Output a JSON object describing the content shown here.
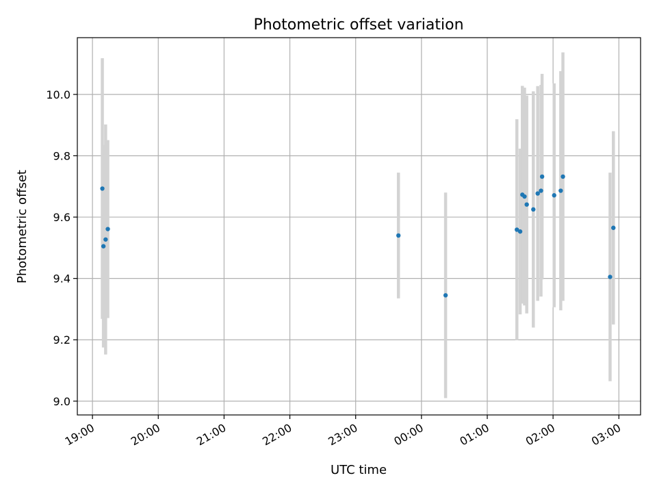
{
  "chart_data": {
    "type": "scatter",
    "title": "Photometric offset variation",
    "xlabel": "UTC time",
    "ylabel": "Photometric offset",
    "x_tick_labels": [
      "19:00",
      "20:00",
      "21:00",
      "22:00",
      "23:00",
      "00:00",
      "01:00",
      "02:00",
      "03:00"
    ],
    "x_ticks_hours": [
      0,
      1,
      2,
      3,
      4,
      5,
      6,
      7,
      8
    ],
    "y_ticks": [
      9.0,
      9.2,
      9.4,
      9.6,
      9.8,
      10.0
    ],
    "xlim_hours": [
      -0.23,
      8.33
    ],
    "ylim": [
      8.955,
      10.185
    ],
    "grid": true,
    "colors": {
      "point": "#1f77b4",
      "errorbar": "#d3d3d3",
      "grid": "#b0b0b0"
    },
    "points": [
      {
        "t": "19:09",
        "y": 9.693,
        "err": 0.425
      },
      {
        "t": "19:10",
        "y": 9.505,
        "err": 0.33
      },
      {
        "t": "19:12",
        "y": 9.527,
        "err": 0.375
      },
      {
        "t": "19:14",
        "y": 9.561,
        "err": 0.29
      },
      {
        "t": "23:39",
        "y": 9.54,
        "err": 0.205
      },
      {
        "t": "00:22",
        "y": 9.345,
        "err": 0.335
      },
      {
        "t": "01:27",
        "y": 9.559,
        "err": 0.36
      },
      {
        "t": "01:30",
        "y": 9.553,
        "err": 0.27
      },
      {
        "t": "01:32",
        "y": 9.673,
        "err": 0.355
      },
      {
        "t": "01:34",
        "y": 9.667,
        "err": 0.355
      },
      {
        "t": "01:36",
        "y": 9.641,
        "err": 0.355
      },
      {
        "t": "01:42",
        "y": 9.625,
        "err": 0.385
      },
      {
        "t": "01:46",
        "y": 9.677,
        "err": 0.35
      },
      {
        "t": "01:49",
        "y": 9.686,
        "err": 0.345
      },
      {
        "t": "01:50",
        "y": 9.732,
        "err": 0.335
      },
      {
        "t": "02:01",
        "y": 9.671,
        "err": 0.365
      },
      {
        "t": "02:07",
        "y": 9.686,
        "err": 0.39
      },
      {
        "t": "02:09",
        "y": 9.732,
        "err": 0.405
      },
      {
        "t": "02:52",
        "y": 9.405,
        "err": 0.34
      },
      {
        "t": "02:55",
        "y": 9.565,
        "err": 0.315
      }
    ]
  }
}
